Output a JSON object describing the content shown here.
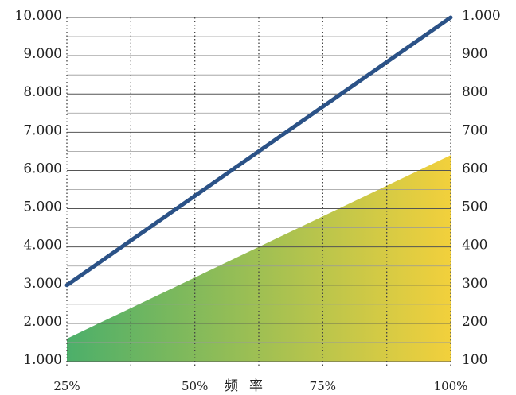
{
  "chart_data": {
    "type": "line",
    "title": "",
    "xlabel": "频率",
    "x_tick_labels": [
      {
        "x": 25,
        "label": "25%"
      },
      {
        "x": 50,
        "label": "50%"
      },
      {
        "x": 75,
        "label": "75%"
      },
      {
        "x": 100,
        "label": "100%"
      }
    ],
    "xlim": [
      25,
      100
    ],
    "x_grid": [
      25,
      37.5,
      50,
      62.5,
      75,
      87.5,
      100
    ],
    "y_left": {
      "ticks": [
        1000,
        2000,
        3000,
        4000,
        5000,
        6000,
        7000,
        8000,
        9000,
        10000
      ],
      "tick_labels": [
        "1.000",
        "2.000",
        "3.000",
        "4.000",
        "5.000",
        "6.000",
        "7.000",
        "8.000",
        "9.000",
        "10.000"
      ],
      "ylim": [
        1000,
        10000
      ]
    },
    "y_right": {
      "ticks": [
        100,
        200,
        300,
        400,
        500,
        600,
        700,
        800,
        900,
        1000
      ],
      "tick_labels": [
        "100",
        "200",
        "300",
        "400",
        "500",
        "600",
        "700",
        "800",
        "900",
        "1.000"
      ],
      "ylim": [
        100,
        1000
      ]
    },
    "grid": true,
    "series": [
      {
        "kind": "line",
        "axis": "left",
        "x": [
          25,
          100
        ],
        "values": [
          3000,
          10000
        ],
        "color": "#2b5287"
      },
      {
        "kind": "area",
        "axis": "left",
        "x": [
          25,
          100
        ],
        "values": [
          1600,
          6400
        ],
        "gradient": [
          "#4caf6a",
          "#f2d03c"
        ]
      }
    ]
  }
}
